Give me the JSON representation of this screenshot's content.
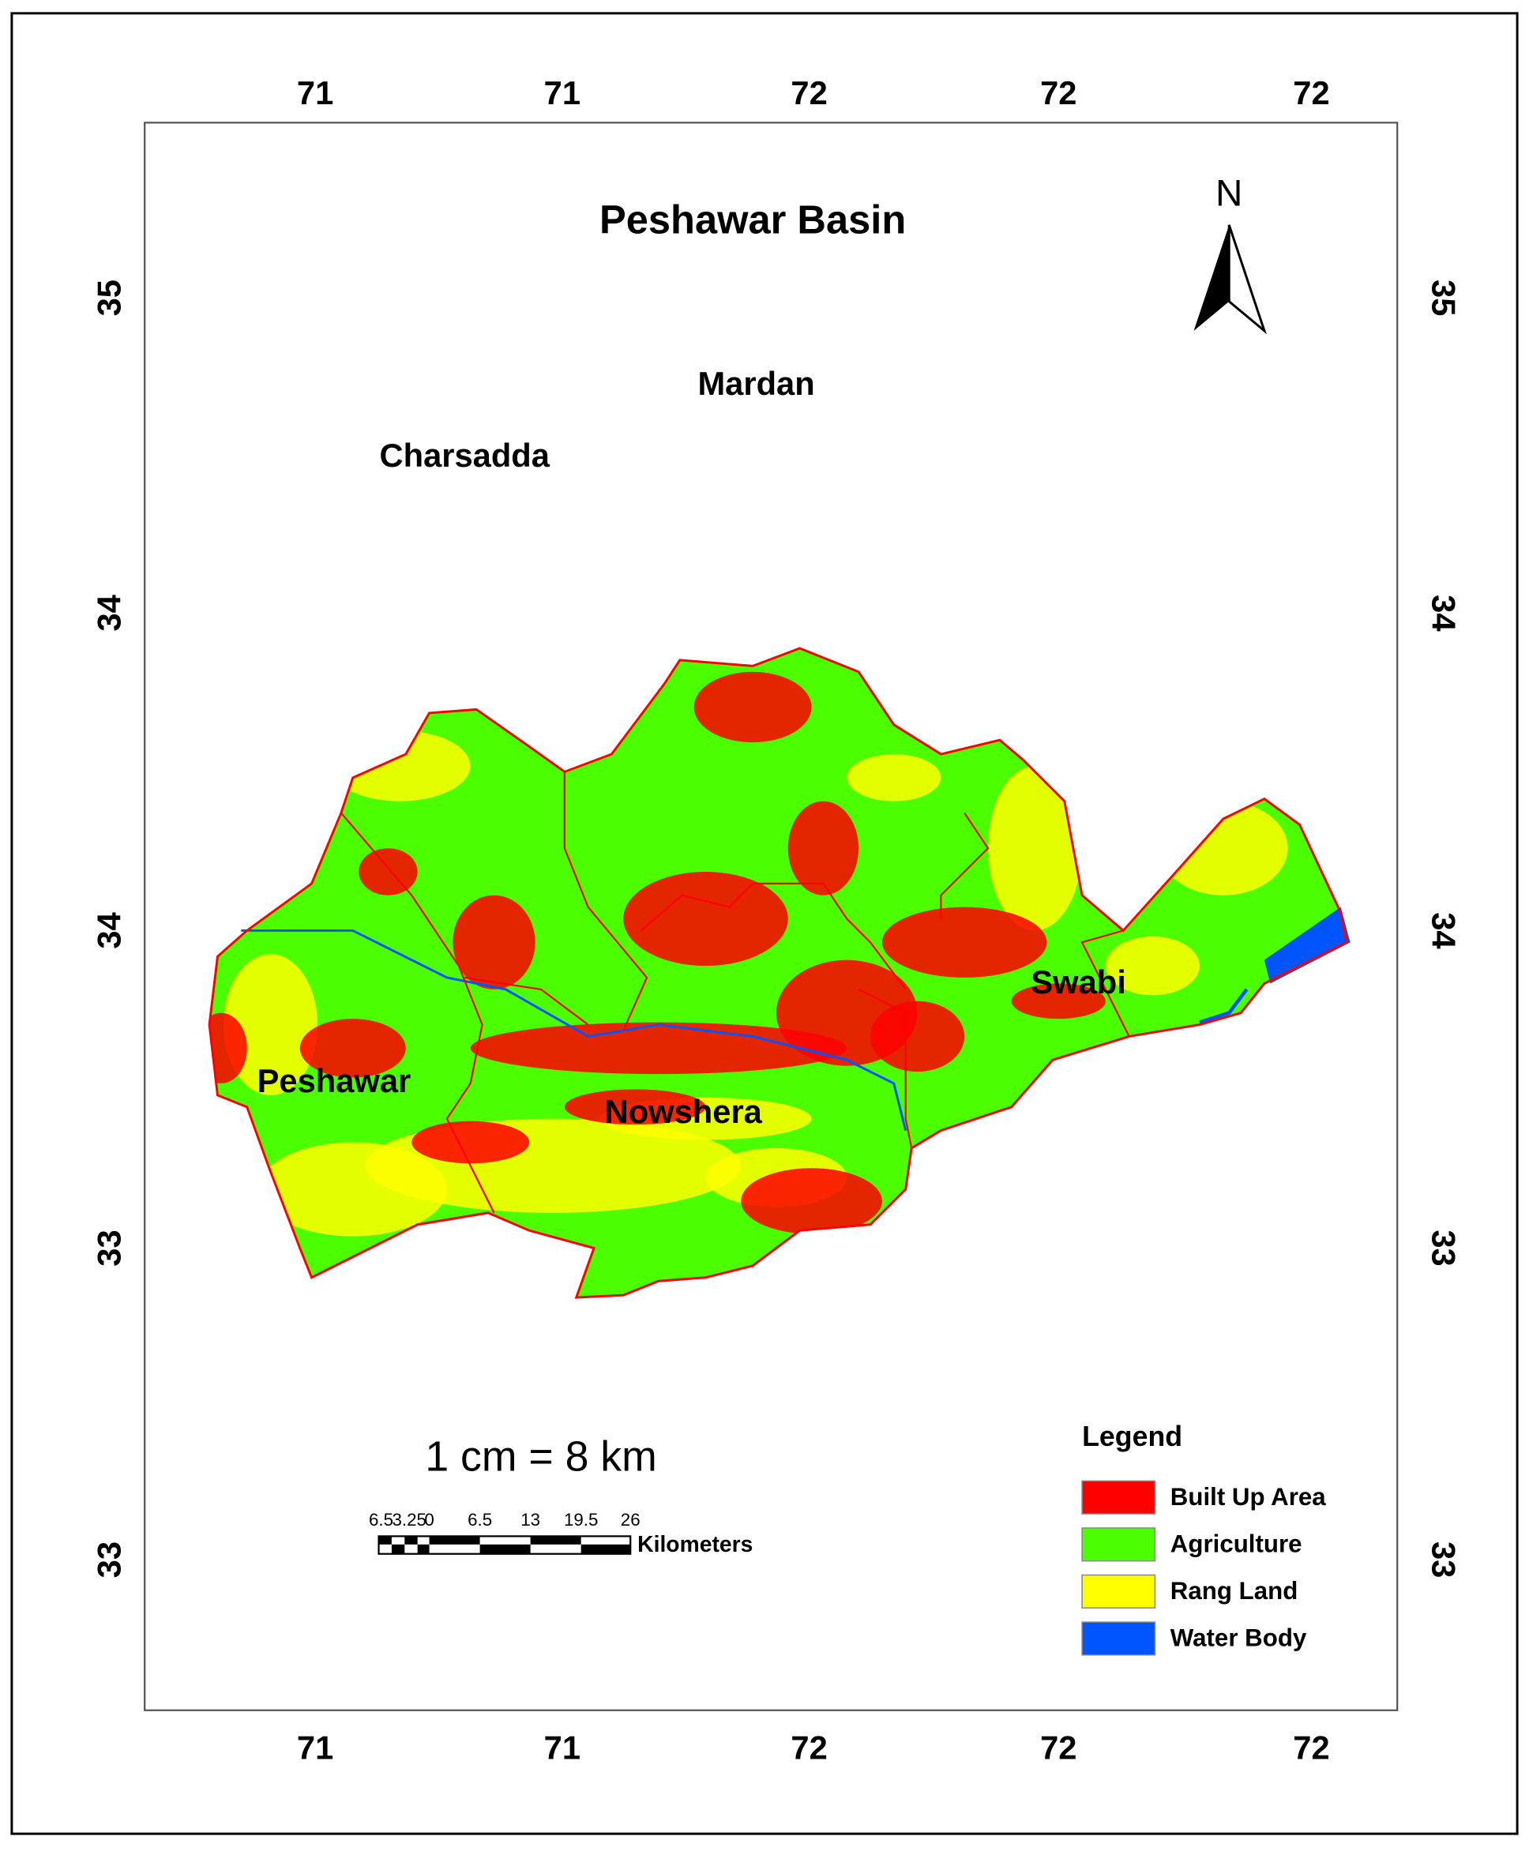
{
  "title": "Peshawar Basin",
  "north": "N",
  "graticule": {
    "top": [
      "71",
      "71",
      "72",
      "72",
      "72"
    ],
    "bottom": [
      "71",
      "71",
      "72",
      "72",
      "72"
    ],
    "left": [
      "35",
      "34",
      "34",
      "33",
      "33"
    ],
    "right": [
      "35",
      "34",
      "34",
      "33",
      "33"
    ]
  },
  "districts": [
    "Mardan",
    "Charsadda",
    "Swabi",
    "Peshawar",
    "Nowshera"
  ],
  "scale": {
    "text": "1 cm = 8 km",
    "labels": [
      "6.5",
      "3.25",
      "0",
      "6.5",
      "13",
      "19.5",
      "26"
    ],
    "unit": "Kilometers"
  },
  "legend": {
    "title": "Legend",
    "items": [
      {
        "label": "Built Up Area",
        "color": "#ff0000"
      },
      {
        "label": "Agriculture",
        "color": "#4cff00"
      },
      {
        "label": "Rang Land",
        "color": "#ffff00"
      },
      {
        "label": "Water Body",
        "color": "#0055ff"
      }
    ]
  }
}
